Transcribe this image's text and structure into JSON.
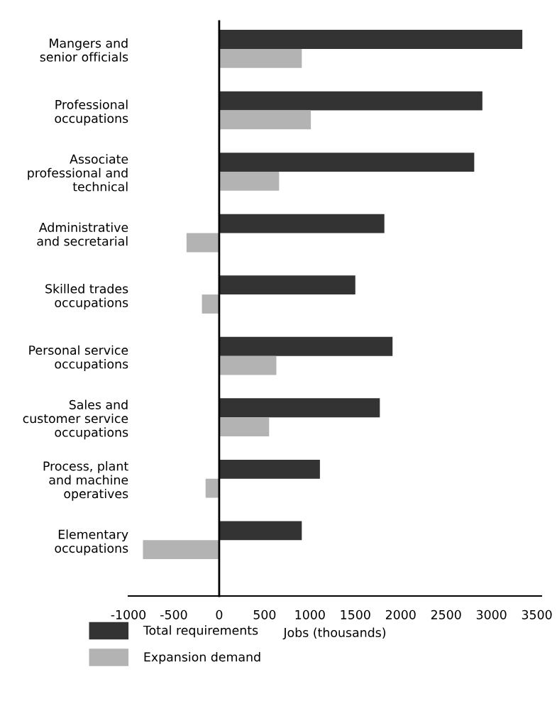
{
  "chart_data": {
    "type": "bar",
    "orientation": "horizontal",
    "xlabel": "Jobs (thousands)",
    "categories": [
      "Mangers and\nsenior officials",
      "Professional\noccupations",
      "Associate\nprofessional and\ntechnical",
      "Administrative\nand secretarial",
      "Skilled trades\noccupations",
      "Personal service\noccupations",
      "Sales and\ncustomer service\noccupations",
      "Process, plant\nand machine\noperatives",
      "Elementary\noccupations"
    ],
    "series": [
      {
        "name": "Total requirements",
        "color": "#333333",
        "values": [
          3340,
          2900,
          2810,
          1820,
          1500,
          1910,
          1770,
          1110,
          910
        ]
      },
      {
        "name": "Expansion demand",
        "color": "#b3b3b3",
        "values": [
          910,
          1010,
          660,
          -360,
          -190,
          630,
          550,
          -150,
          -840
        ]
      }
    ],
    "xlim": [
      -1000,
      3550
    ],
    "xticks": [
      -1000,
      -500,
      0,
      500,
      1000,
      1500,
      2000,
      2500,
      3000,
      3500
    ],
    "legend": "bottom"
  }
}
